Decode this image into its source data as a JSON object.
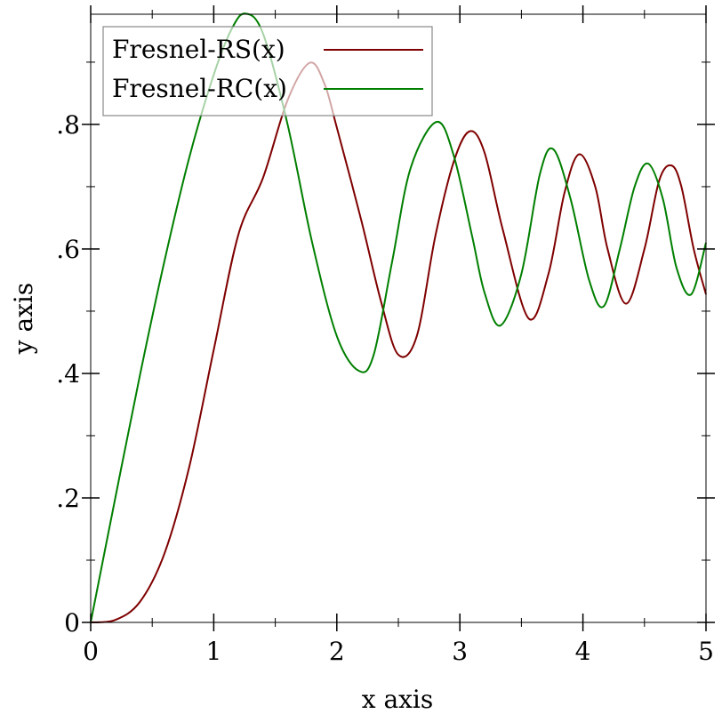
{
  "chart_data": {
    "type": "line",
    "xlabel": "x axis",
    "ylabel": "y axis",
    "xlim": [
      0,
      5
    ],
    "ylim": [
      0,
      0.977
    ],
    "x_ticks": [
      {
        "value": 0,
        "label": "0"
      },
      {
        "value": 1,
        "label": "1"
      },
      {
        "value": 2,
        "label": "2"
      },
      {
        "value": 3,
        "label": "3"
      },
      {
        "value": 4,
        "label": "4"
      },
      {
        "value": 5,
        "label": "5"
      }
    ],
    "x_minor_ticks": [
      0.5,
      1.5,
      2.5,
      3.5,
      4.5
    ],
    "y_ticks": [
      {
        "value": 0,
        "label": "0"
      },
      {
        "value": 0.2,
        "label": ".2"
      },
      {
        "value": 0.4,
        "label": ".4"
      },
      {
        "value": 0.6,
        "label": ".6"
      },
      {
        "value": 0.8,
        "label": ".8"
      }
    ],
    "y_minor_ticks": [
      0.1,
      0.3,
      0.5,
      0.7,
      0.9
    ],
    "grid": false,
    "legend_position": "top-left",
    "series": [
      {
        "name": "Fresnel-RS(x)",
        "color": "#7f0000",
        "x": [
          0,
          0.2,
          0.4,
          0.6,
          0.8,
          1.0,
          1.2,
          1.4,
          1.6,
          1.78,
          1.9,
          2.0,
          2.2,
          2.36,
          2.5,
          2.65,
          2.8,
          2.95,
          3.08,
          3.2,
          3.35,
          3.56,
          3.72,
          3.85,
          3.97,
          4.1,
          4.2,
          4.35,
          4.5,
          4.62,
          4.72,
          4.8,
          4.9,
          5.0
        ],
        "y": [
          0,
          0.004,
          0.033,
          0.111,
          0.249,
          0.438,
          0.623,
          0.714,
          0.839,
          0.899,
          0.865,
          0.795,
          0.645,
          0.515,
          0.43,
          0.46,
          0.62,
          0.74,
          0.789,
          0.755,
          0.63,
          0.488,
          0.56,
          0.69,
          0.752,
          0.7,
          0.6,
          0.512,
          0.6,
          0.71,
          0.734,
          0.7,
          0.6,
          0.527
        ]
      },
      {
        "name": "Fresnel-RC(x)",
        "color": "#007f00",
        "x": [
          0,
          0.2,
          0.4,
          0.6,
          0.8,
          1.0,
          1.15,
          1.26,
          1.4,
          1.6,
          1.8,
          2.0,
          2.18,
          2.3,
          2.45,
          2.6,
          2.81,
          2.95,
          3.1,
          3.2,
          3.33,
          3.5,
          3.65,
          3.76,
          3.9,
          4.05,
          4.17,
          4.3,
          4.42,
          4.53,
          4.65,
          4.76,
          4.88,
          5.0
        ],
        "y": [
          0,
          0.2,
          0.397,
          0.581,
          0.746,
          0.88,
          0.955,
          0.978,
          0.946,
          0.8,
          0.61,
          0.46,
          0.404,
          0.43,
          0.58,
          0.73,
          0.804,
          0.75,
          0.62,
          0.53,
          0.477,
          0.56,
          0.72,
          0.76,
          0.68,
          0.55,
          0.508,
          0.6,
          0.7,
          0.737,
          0.68,
          0.57,
          0.527,
          0.61
        ]
      }
    ]
  }
}
